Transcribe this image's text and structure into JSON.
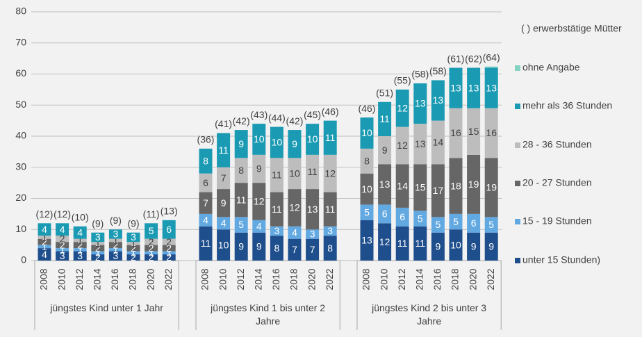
{
  "chart_data": {
    "type": "bar",
    "stacked": true,
    "groups": [
      {
        "label": "jüngstes Kind unter 1 Jahr",
        "categories": [
          "2008",
          "2010",
          "2012",
          "2014",
          "2016",
          "2018",
          "2020",
          "2022"
        ]
      },
      {
        "label": "jüngstes Kind 1 bis unter 2 Jahre",
        "categories": [
          "2008",
          "2010",
          "2012",
          "2014",
          "2016",
          "2018",
          "2020",
          "2022"
        ]
      },
      {
        "label": "jüngstes Kind 2 bis unter 3 Jahre",
        "categories": [
          "2008",
          "2010",
          "2012",
          "2014",
          "2016",
          "2018",
          "2020",
          "2022"
        ]
      }
    ],
    "series": [
      {
        "name": "unter 15 Stunden)",
        "color": "#1f4e8c",
        "values": [
          4,
          3,
          3,
          2,
          3,
          2,
          2,
          2,
          11,
          10,
          9,
          9,
          8,
          7,
          7,
          8,
          13,
          12,
          11,
          11,
          9,
          10,
          9,
          9
        ]
      },
      {
        "name": "15 - 19 Stunden",
        "color": "#62a9e2",
        "values": [
          1,
          1,
          1,
          1,
          1,
          1,
          1,
          1,
          4,
          4,
          5,
          4,
          3,
          4,
          3,
          3,
          5,
          6,
          6,
          5,
          5,
          5,
          6,
          5
        ]
      },
      {
        "name": "20 - 27 Stunden",
        "color": "#666666",
        "values": [
          2,
          2,
          2,
          2,
          2,
          2,
          2,
          2,
          7,
          9,
          11,
          12,
          11,
          12,
          13,
          11,
          10,
          13,
          14,
          15,
          17,
          18,
          19,
          19
        ]
      },
      {
        "name": "28 - 36 Stunden",
        "color": "#bdbdbd",
        "values": [
          1,
          2,
          1,
          1,
          1,
          1,
          2,
          2,
          6,
          7,
          8,
          9,
          11,
          10,
          11,
          12,
          8,
          9,
          12,
          13,
          14,
          16,
          15,
          16
        ]
      },
      {
        "name": "mehr als 36 Stunden",
        "color": "#1b9bb3",
        "values": [
          4,
          4,
          4,
          3,
          3,
          3,
          5,
          6,
          8,
          11,
          9,
          10,
          10,
          9,
          10,
          11,
          10,
          11,
          12,
          13,
          13,
          13,
          13,
          13
        ]
      },
      {
        "name": "ohne Angabe",
        "color": "#86d3c3",
        "values": [
          0,
          0,
          0,
          0,
          0,
          0,
          0,
          0,
          0,
          0,
          0,
          0,
          0,
          0,
          0,
          0,
          0,
          0,
          0,
          0,
          0,
          0,
          0,
          0.4
        ]
      }
    ],
    "totals": {
      "name": "( ) erwerbstätige Mütter",
      "values": [
        12,
        12,
        10,
        9,
        9,
        9,
        11,
        13,
        36,
        41,
        42,
        43,
        44,
        42,
        45,
        46,
        46,
        51,
        55,
        58,
        58,
        61,
        62,
        64
      ],
      "value_labels": [
        "(12)",
        "(12)",
        "(10)",
        "(9)",
        "(9)",
        "(9)",
        "(11)",
        "(13)",
        "(36)",
        "(41)",
        "(42)",
        "(43)",
        "(44)",
        "(42)",
        "(45)",
        "(46)",
        "(46)",
        "(51)",
        "(55)",
        "(58)",
        "(58)",
        "(61)",
        "(62)",
        "(64)"
      ]
    },
    "ylim": [
      0,
      80
    ],
    "yticks": [
      0,
      10,
      20,
      30,
      40,
      50,
      60,
      70,
      80
    ],
    "grid": true
  }
}
